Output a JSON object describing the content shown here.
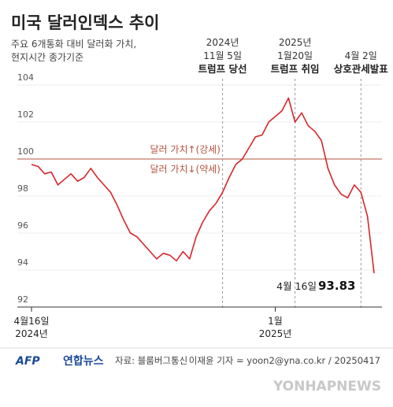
{
  "chart_data": {
    "type": "line",
    "title": "미국 달러인덱스 추이",
    "subtitle": "주요 6개통화 대비 달러화 가치,\n현지시간 종가기준",
    "categories": [
      "4월16일\n2024년",
      null,
      null,
      null,
      null,
      null,
      null,
      null,
      null,
      null,
      null,
      null,
      null,
      null,
      null,
      null,
      null,
      null,
      null,
      null,
      null,
      null,
      null,
      null,
      null,
      null,
      null,
      null,
      null,
      null,
      null,
      null,
      null,
      null,
      null,
      null,
      null,
      "1월\n2025년",
      null,
      null,
      null,
      null,
      null,
      null,
      null,
      null,
      null,
      null,
      null,
      null,
      null,
      null,
      null
    ],
    "series": [
      {
        "name": "달러인덱스",
        "color": "#d7262b",
        "values": [
          99.7,
          99.6,
          99.2,
          99.3,
          98.6,
          98.9,
          99.2,
          98.8,
          99.0,
          99.5,
          99.0,
          98.6,
          98.2,
          97.5,
          96.7,
          96.0,
          95.8,
          95.4,
          95.0,
          94.6,
          94.9,
          94.8,
          94.5,
          95.0,
          94.6,
          95.8,
          96.6,
          97.2,
          97.6,
          98.2,
          99.0,
          99.7,
          100.0,
          100.6,
          101.2,
          101.3,
          102.0,
          102.3,
          102.6,
          103.3,
          102.0,
          102.5,
          101.8,
          101.5,
          101.0,
          99.5,
          98.6,
          98.1,
          97.9,
          98.6,
          98.2,
          96.9,
          93.83
        ]
      }
    ],
    "end_label": "4월 16일",
    "ylim": [
      92,
      104
    ],
    "yticks": [
      92,
      94,
      96,
      98,
      100,
      102,
      104
    ],
    "grid": true,
    "reference_line": {
      "value": 100,
      "color": "#b5533c",
      "above": "달러 가치↑(강세)",
      "below": "달러 가치↓(약세)"
    },
    "events": [
      {
        "index": 29,
        "date": "2024년\n11월 5일",
        "label": "트럼프 당선"
      },
      {
        "index": 40,
        "date": "2025년\n1월20일",
        "label": "트럼프 취임"
      },
      {
        "index": 50,
        "date": "4월 2일",
        "label": "상호관세발표"
      }
    ],
    "footer": {
      "agency": "AFP",
      "brand": "연합뉴스",
      "source": "자료: 블룸버그통신",
      "credit": "이재윤 기자 = yoon2@yna.co.kr / 20250417",
      "watermark": "YONHAPNEWS"
    }
  }
}
